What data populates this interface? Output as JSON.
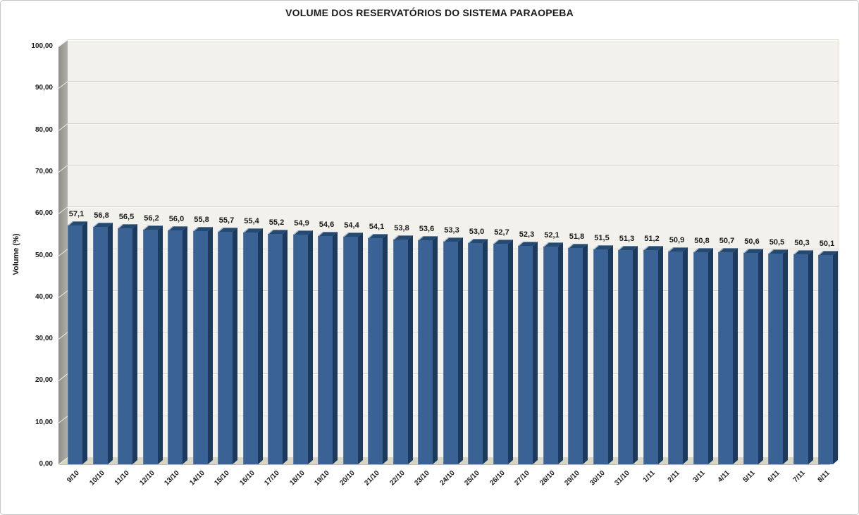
{
  "title": "VOLUME DOS RESERVATÓRIOS DO SISTEMA PARAOPEBA",
  "chart_data": {
    "type": "bar",
    "style": "3d-column-excel",
    "title": "VOLUME DOS RESERVATÓRIOS DO SISTEMA PARAOPEBA",
    "xlabel": "",
    "ylabel": "Volume (%)",
    "ylim": [
      0,
      100
    ],
    "grid": true,
    "legend": false,
    "y_ticks": [
      "0,00",
      "10,00",
      "20,00",
      "30,00",
      "40,00",
      "50,00",
      "60,00",
      "70,00",
      "80,00",
      "90,00",
      "100,00"
    ],
    "categories": [
      "9/10",
      "10/10",
      "11/10",
      "12/10",
      "13/10",
      "14/10",
      "15/10",
      "16/10",
      "17/10",
      "18/10",
      "19/10",
      "20/10",
      "21/10",
      "22/10",
      "23/10",
      "24/10",
      "25/10",
      "26/10",
      "27/10",
      "28/10",
      "29/10",
      "30/10",
      "31/10",
      "1/11",
      "2/11",
      "3/11",
      "4/11",
      "5/11",
      "6/11",
      "7/11",
      "8/11"
    ],
    "values": [
      57.1,
      56.8,
      56.5,
      56.2,
      56.0,
      55.8,
      55.7,
      55.4,
      55.2,
      54.9,
      54.6,
      54.4,
      54.1,
      53.8,
      53.6,
      53.3,
      53.0,
      52.7,
      52.3,
      52.1,
      51.8,
      51.5,
      51.3,
      51.2,
      50.9,
      50.8,
      50.7,
      50.6,
      50.5,
      50.3,
      50.1
    ],
    "value_labels": [
      "57,1",
      "56,8",
      "56,5",
      "56,2",
      "56,0",
      "55,8",
      "55,7",
      "55,4",
      "55,2",
      "54,9",
      "54,6",
      "54,4",
      "54,1",
      "53,8",
      "53,6",
      "53,3",
      "53,0",
      "52,7",
      "52,3",
      "52,1",
      "51,8",
      "51,5",
      "51,3",
      "51,2",
      "50,9",
      "50,8",
      "50,7",
      "50,6",
      "50,5",
      "50,3",
      "50,1"
    ]
  },
  "colors": {
    "bar_front": "#3a6294",
    "bar_side": "#1c3a5e",
    "bar_top": "#254a71",
    "bar_top_highlight": "#a4b7cd",
    "back_wall": "#f2f1eb",
    "gridline": "#d4d3cd",
    "side_wall_dark": "#8f8e88",
    "side_wall_light": "#b1afa9",
    "wall_tick": "#efeee8",
    "floor": "#d8d5c2",
    "floor_edge": "#c0bdaa",
    "text": "#1a1a1a"
  }
}
